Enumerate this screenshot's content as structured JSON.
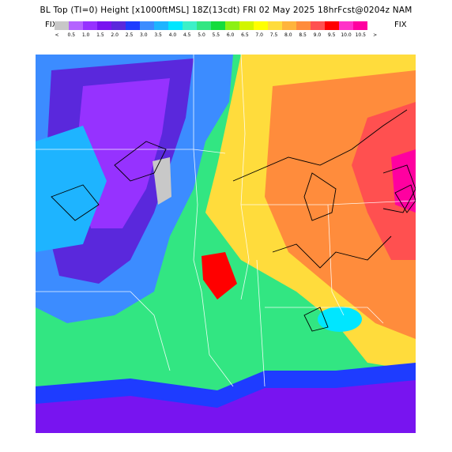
{
  "title": "BL Top (TI=0) Height [x1000ftMSL] 18Z(13cdt) FRI 02 May 2025 18hrFcst@0204z NAM",
  "scale": {
    "left_label": "FIX",
    "right_label": "FIX",
    "underflow_symbol": "<",
    "overflow_symbol": ">",
    "tick_labels": [
      "0.5",
      "1.0",
      "1.5",
      "2.0",
      "2.5",
      "3.0",
      "3.5",
      "4.0",
      "4.5",
      "5.0",
      "5.5",
      "6.0",
      "6.5",
      "7.0",
      "7.5",
      "8.0",
      "8.5",
      "9.0",
      "9.5",
      "10.0",
      "10.5"
    ],
    "colors": [
      "#c8c8c8",
      "#b464ff",
      "#9632ff",
      "#7814f0",
      "#5a28dc",
      "#1e3cff",
      "#3c8cff",
      "#1eb4ff",
      "#00e6ff",
      "#3cf0c8",
      "#32e682",
      "#14dc3c",
      "#8cf014",
      "#d2f500",
      "#ffff00",
      "#ffdc3c",
      "#ffb43c",
      "#ff8c3c",
      "#ff5050",
      "#ff0000",
      "#ff32c8",
      "#ff00a0"
    ]
  }
}
